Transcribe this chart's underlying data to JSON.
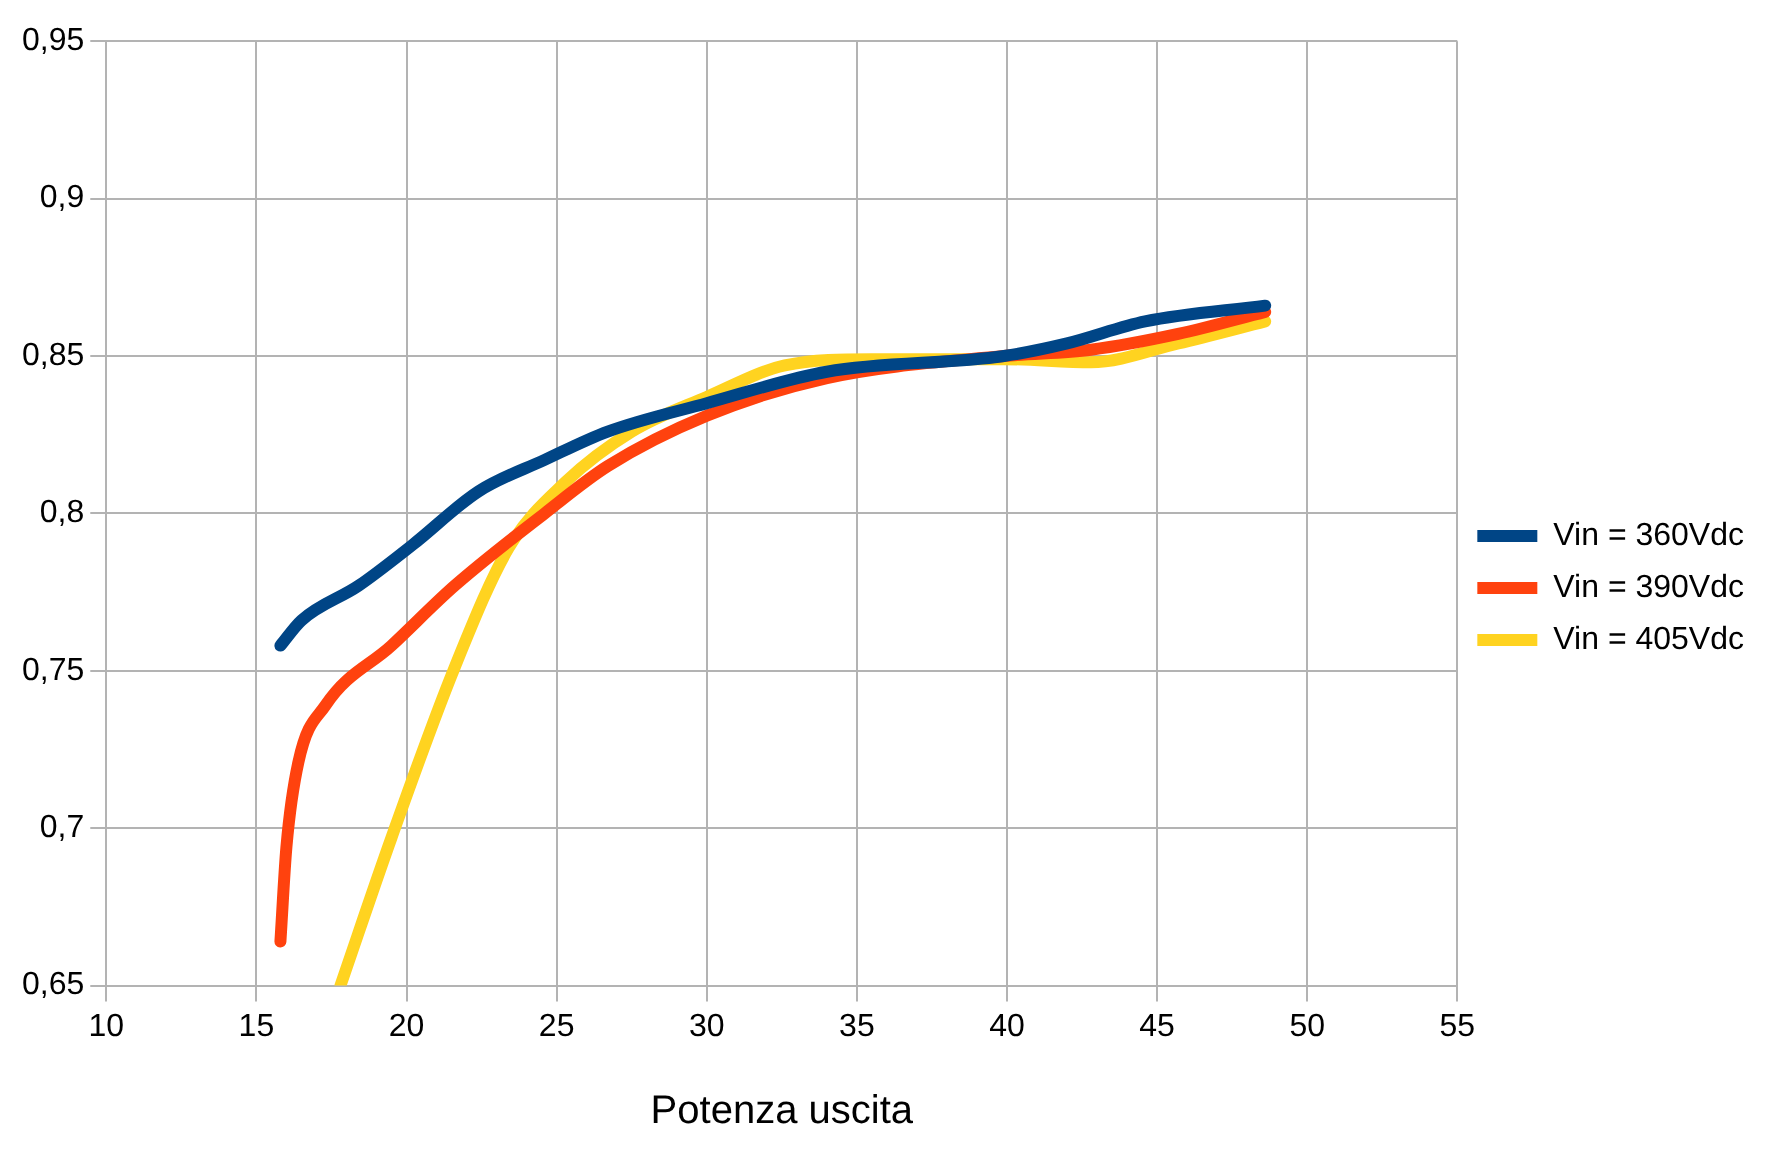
{
  "chart_data": {
    "type": "line",
    "xlabel": "Potenza uscita",
    "xlim": [
      10,
      55
    ],
    "xticks": [
      10,
      15,
      20,
      25,
      30,
      35,
      40,
      45,
      50,
      55
    ],
    "ylim": [
      0.65,
      0.95
    ],
    "yticks": [
      {
        "value": 0.65,
        "label": "0,65"
      },
      {
        "value": 0.7,
        "label": "0,7"
      },
      {
        "value": 0.75,
        "label": "0,75"
      },
      {
        "value": 0.8,
        "label": "0,8"
      },
      {
        "value": 0.85,
        "label": "0,85"
      },
      {
        "value": 0.9,
        "label": "0,9"
      },
      {
        "value": 0.95,
        "label": "0,95"
      }
    ],
    "grid": true,
    "legend": "right",
    "marker": "none",
    "line_style": "solid",
    "series": [
      {
        "name": "Vin = 360Vdc",
        "color": "#004586",
        "x": [
          15.8,
          16.5,
          18.4,
          20.2,
          22.4,
          24.6,
          26.7,
          30,
          34,
          39.9,
          42,
          44.6,
          48.6
        ],
        "values": [
          0.758,
          0.766,
          0.777,
          0.79,
          0.807,
          0.817,
          0.826,
          0.835,
          0.845,
          0.85,
          0.854,
          0.861,
          0.866
        ]
      },
      {
        "name": "Vin = 390Vdc",
        "color": "#ff420e",
        "x": [
          15.8,
          16.0,
          16.4,
          17.3,
          19.5,
          21.6,
          24.6,
          26.7,
          30,
          34,
          39.9,
          42.8,
          45.7,
          48.6
        ],
        "values": [
          0.664,
          0.694,
          0.721,
          0.739,
          0.758,
          0.777,
          0.8,
          0.815,
          0.831,
          0.843,
          0.85,
          0.852,
          0.857,
          0.864
        ]
      },
      {
        "name": "Vin = 405Vdc",
        "color": "#ffd320",
        "x": [
          17.8,
          19.5,
          21.6,
          23.4,
          25.3,
          27.5,
          30,
          32.6,
          35.5,
          39.9,
          42.8,
          45.7,
          48.6
        ],
        "values": [
          0.65,
          0.697,
          0.751,
          0.789,
          0.81,
          0.826,
          0.837,
          0.847,
          0.849,
          0.849,
          0.848,
          0.854,
          0.861
        ]
      }
    ]
  }
}
